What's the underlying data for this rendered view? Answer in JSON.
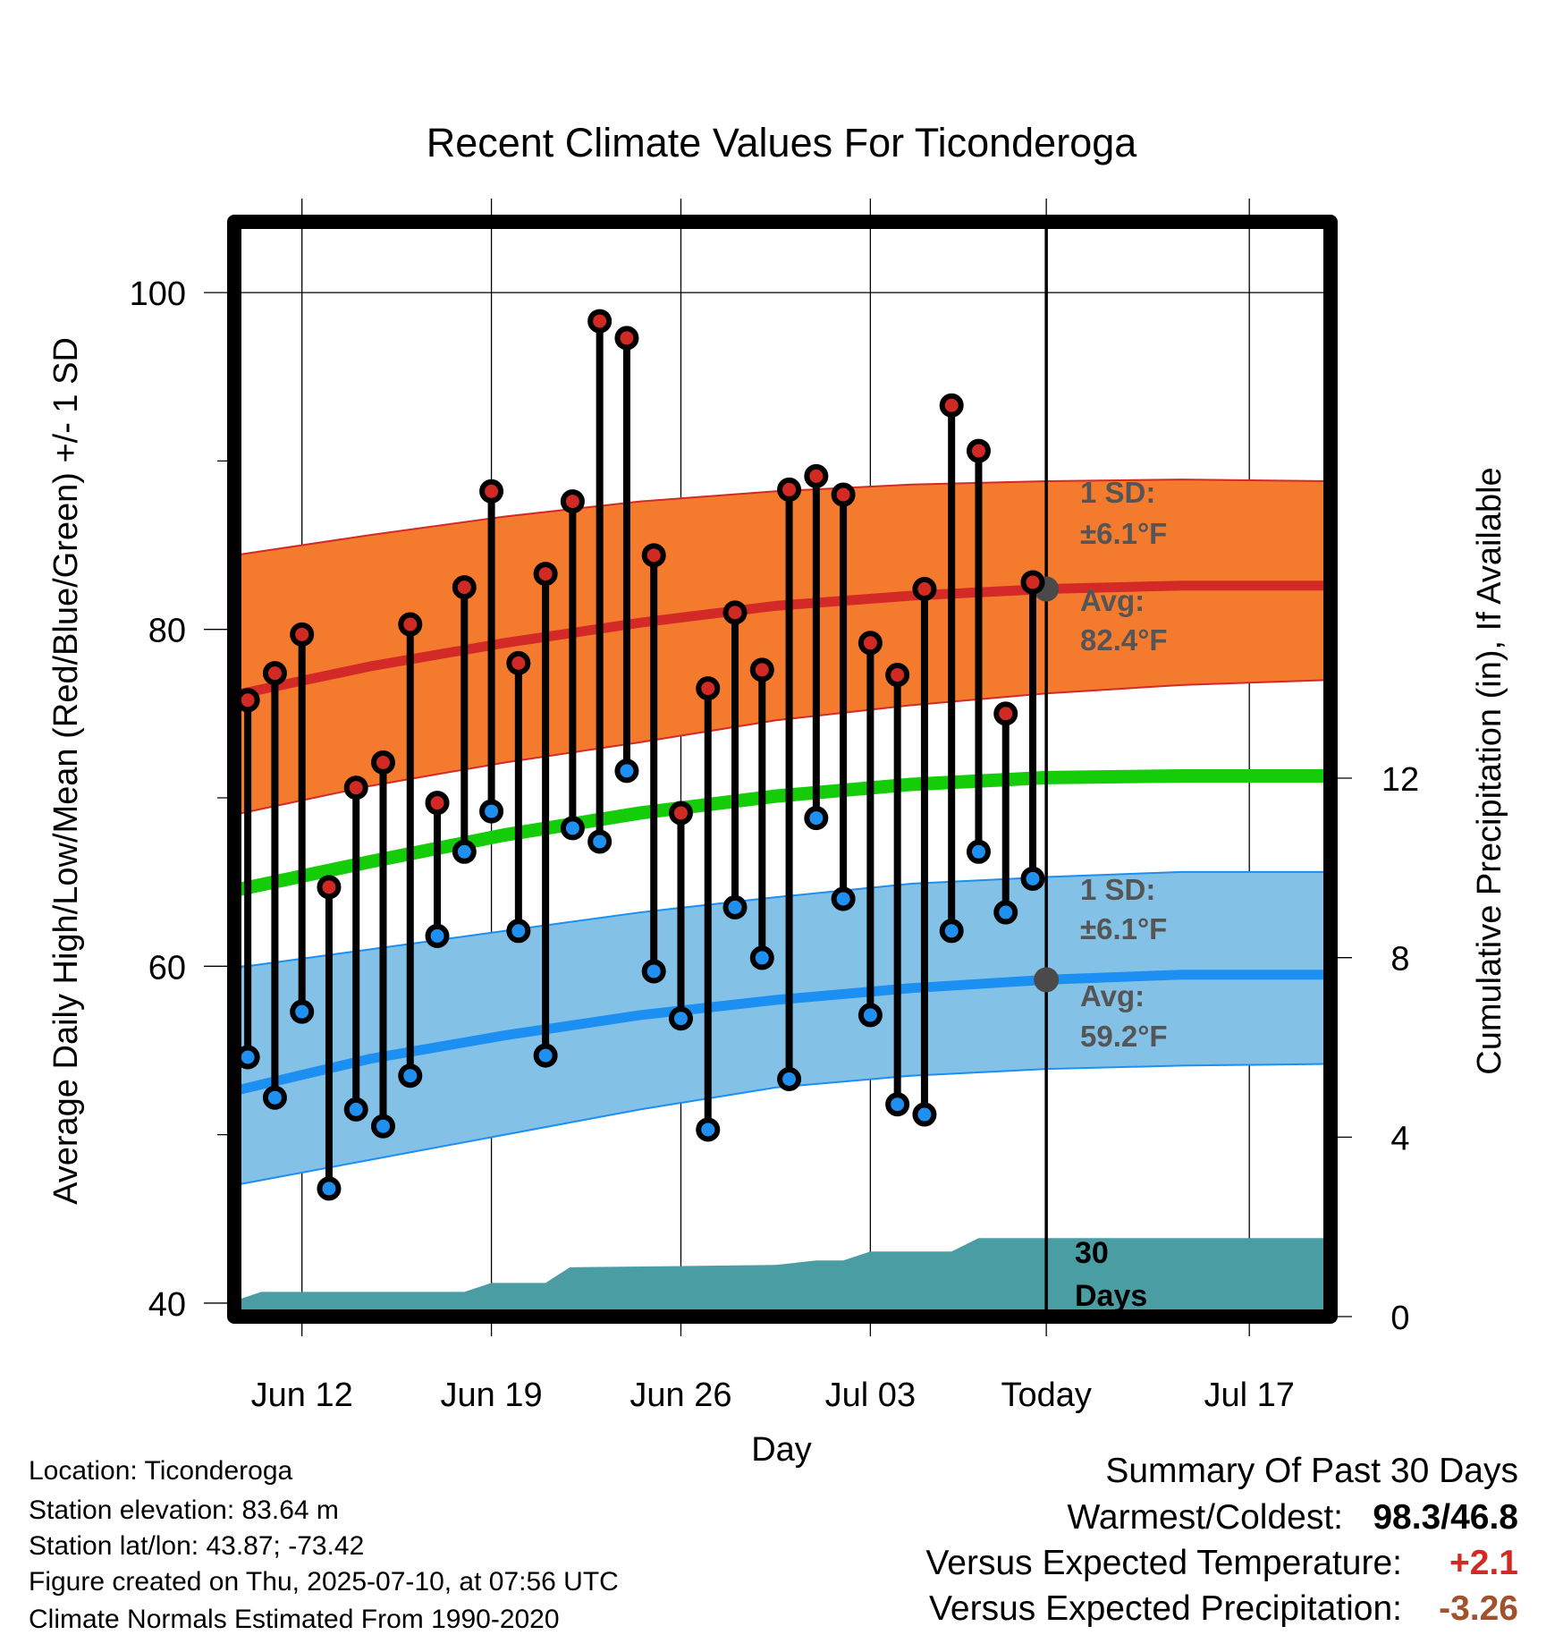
{
  "chart_data": {
    "type": "line",
    "title": "Recent Climate Values For Ticonderoga",
    "xlabel": "Day",
    "ylabel_left": "Average Daily High/Low/Mean (Red/Blue/Green) +/- 1 SD",
    "ylabel_right": "Cumulative Precipitation (in), If Available",
    "x_tick_labels": [
      "Jun 12",
      "Jun 19",
      "Jun 26",
      "Jul 03",
      "Today",
      "Jul 17"
    ],
    "y_left_ticks": [
      "40",
      "60",
      "80",
      "100"
    ],
    "y_right_ticks": [
      "0",
      "4",
      "8",
      "12"
    ],
    "ylim_left": [
      39.2,
      104.2
    ],
    "ylim_right": [
      0,
      24.4
    ],
    "xlim": [
      0,
      40.5
    ],
    "grid": true,
    "colors": {
      "high_band": "#f47b2e",
      "high_avg": "#d42a27",
      "low_band": "#83c1e6",
      "low_avg": "#1b8ff2",
      "mean": "#14cc08",
      "precip": "#4a9ea3",
      "obs_high": "#d12a25",
      "obs_low": "#1f8ff0",
      "marker": "#4a4a4a"
    },
    "normals": {
      "x": [
        0,
        5,
        10,
        15,
        20,
        25,
        30,
        35,
        40.5
      ],
      "high_avg": [
        76.1,
        77.8,
        79.2,
        80.4,
        81.4,
        82.0,
        82.4,
        82.6,
        82.6
      ],
      "high_upper": [
        84.4,
        85.6,
        86.7,
        87.6,
        88.2,
        88.6,
        88.8,
        88.9,
        88.8
      ],
      "high_lower": [
        69.0,
        70.7,
        72.1,
        73.3,
        74.6,
        75.5,
        76.2,
        76.7,
        77.0
      ],
      "low_avg": [
        52.6,
        54.5,
        55.9,
        57.1,
        58.0,
        58.7,
        59.2,
        59.5,
        59.5
      ],
      "low_upper": [
        59.9,
        61.0,
        62.1,
        63.2,
        64.1,
        64.9,
        65.3,
        65.6,
        65.6
      ],
      "low_lower": [
        47.0,
        48.5,
        50.0,
        51.5,
        52.8,
        53.5,
        53.9,
        54.1,
        54.2
      ],
      "mean": [
        64.5,
        66.2,
        67.8,
        69.1,
        70.1,
        70.8,
        71.2,
        71.3,
        71.3
      ]
    },
    "days": [
      0.5,
      1.5,
      2.5,
      3.5,
      4.5,
      5.5,
      6.5,
      7.5,
      8.5,
      9.5,
      10.5,
      11.5,
      12.5,
      13.5,
      14.5,
      15.5,
      16.5,
      17.5,
      18.5,
      19.5,
      20.5,
      21.5,
      22.5,
      23.5,
      24.5,
      25.5,
      26.5,
      27.5,
      28.5,
      29.5
    ],
    "series": [
      {
        "name": "High",
        "values": [
          75.8,
          77.4,
          79.7,
          64.7,
          70.6,
          72.1,
          80.3,
          69.7,
          82.5,
          88.2,
          78.0,
          83.3,
          87.6,
          98.3,
          97.3,
          84.4,
          69.1,
          76.5,
          81.0,
          77.6,
          88.3,
          89.1,
          88.0,
          79.2,
          77.3,
          82.4,
          93.3,
          90.6,
          75.0,
          82.8
        ]
      },
      {
        "name": "Low",
        "values": [
          54.6,
          52.2,
          57.3,
          46.8,
          51.5,
          50.5,
          53.5,
          61.8,
          66.8,
          69.2,
          62.1,
          54.7,
          68.2,
          67.4,
          71.6,
          59.7,
          56.9,
          50.3,
          63.5,
          60.5,
          53.3,
          68.8,
          64.0,
          57.1,
          51.8,
          51.2,
          62.1,
          66.8,
          63.2,
          65.2
        ]
      }
    ],
    "precip": {
      "x": [
        0,
        1,
        8.5,
        9.5,
        11.5,
        12.4,
        20,
        21.5,
        22.5,
        23.5,
        26.5,
        27.5,
        40.5
      ],
      "values": [
        0.35,
        0.55,
        0.55,
        0.75,
        0.75,
        1.1,
        1.15,
        1.25,
        1.25,
        1.45,
        1.45,
        1.75,
        1.75
      ]
    },
    "today_x": 30,
    "annotations": {
      "high_sd": "1 SD:",
      "high_sd_val": "±6.1°F",
      "high_avg_label": "Avg:",
      "high_avg_val": "82.4°F",
      "low_sd": "1 SD:",
      "low_sd_val": "±6.1°F",
      "low_avg_label": "Avg:",
      "low_avg_val": "59.2°F",
      "days_num": "30",
      "days_word": "Days"
    }
  },
  "info": {
    "location": "Location: Ticonderoga",
    "elevation": "Station elevation: 83.64 m",
    "latlon": "Station lat/lon: 43.87; -73.42",
    "created": "Figure created on Thu, 2025-07-10, at 07:56 UTC",
    "normals": "Climate Normals Estimated From 1990-2020"
  },
  "summary": {
    "title": "Summary Of Past 30 Days",
    "warm_label": "Warmest/Coldest:",
    "warm_value": "98.3/46.8",
    "temp_label": "Versus Expected Temperature:",
    "temp_value": "+2.1",
    "precip_label": "Versus Expected Precipitation:",
    "precip_value": "-3.26",
    "temp_color": "#d12a25",
    "precip_color": "#a0522d"
  }
}
